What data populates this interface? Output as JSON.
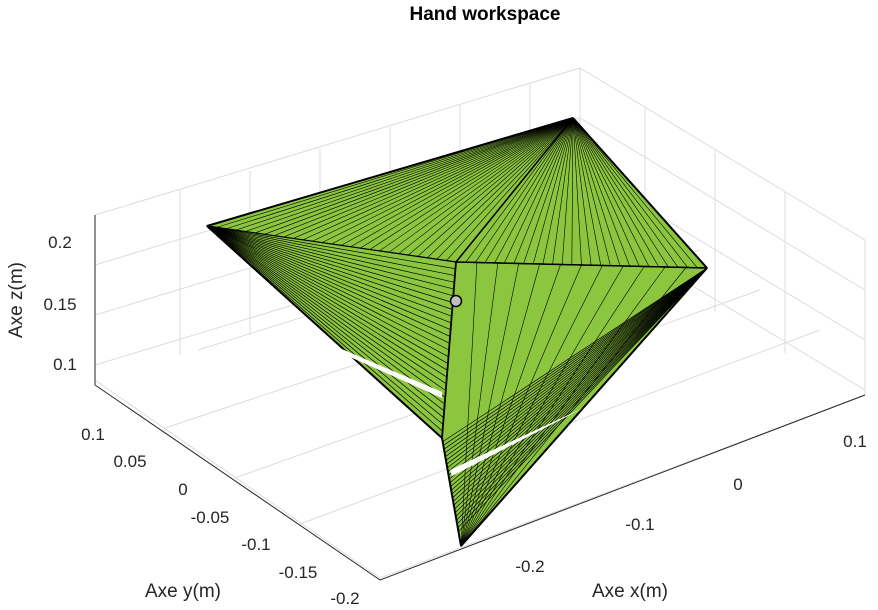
{
  "chart_data": {
    "type": "3d-surface",
    "title": "Hand workspace",
    "xlabel": "Axe x(m)",
    "ylabel": "Axe y(m)",
    "zlabel": "Axe z(m)",
    "x_ticks": [
      "-0.2",
      "-0.1",
      "0",
      "0.1"
    ],
    "y_ticks": [
      "0.1",
      "0.05",
      "0",
      "-0.05",
      "-0.1",
      "-0.15",
      "-0.2"
    ],
    "z_ticks": [
      "0.2",
      "0.15",
      "0.1"
    ],
    "xlim": [
      -0.25,
      0.15
    ],
    "ylim": [
      -0.2,
      0.12
    ],
    "zlim": [
      0.085,
      0.23
    ],
    "grid": true,
    "surface_color": "#8cc63f",
    "edge_color": "#000000",
    "marker": {
      "x": -0.05,
      "y": 0.0,
      "z": 0.16,
      "color": "#bfbfbf"
    }
  }
}
